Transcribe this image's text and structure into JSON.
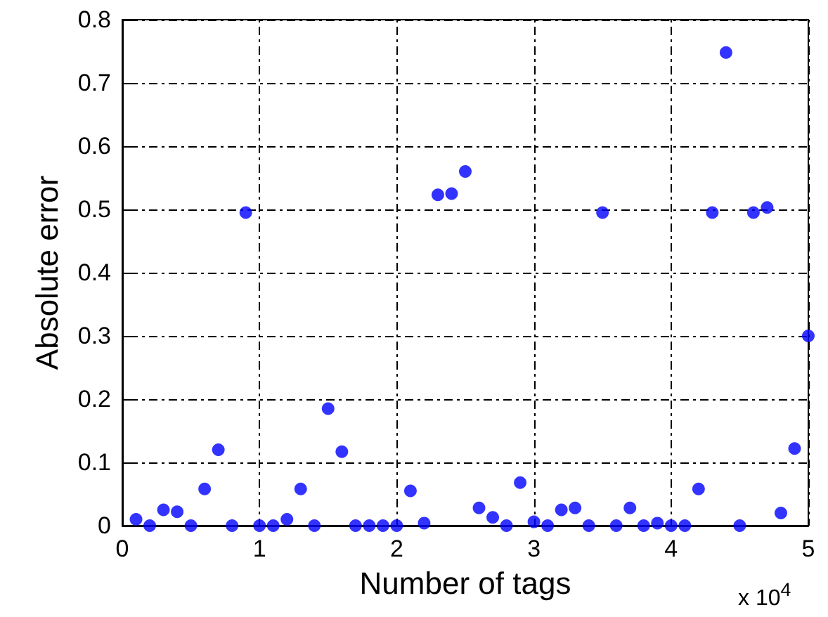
{
  "chart_data": {
    "type": "scatter",
    "xlabel": "Number of tags",
    "ylabel": "Absolute error",
    "annotations": [
      "x 10$^{4}$"
    ],
    "x": [
      0.1,
      0.2,
      0.3,
      0.4,
      0.5,
      0.6,
      0.7,
      0.8,
      0.9,
      1.0,
      1.1,
      1.2,
      1.3,
      1.4,
      1.5,
      1.6,
      1.7,
      1.8,
      1.9,
      2.0,
      2.1,
      2.2,
      2.3,
      2.4,
      2.5,
      2.6,
      2.7,
      2.8,
      2.9,
      3.0,
      3.1,
      3.2,
      3.3,
      3.4,
      3.5,
      3.6,
      3.7,
      3.8,
      3.9,
      4.0,
      4.1,
      4.2,
      4.3,
      4.4,
      4.5,
      4.6,
      4.7,
      4.8,
      4.9,
      5.0
    ],
    "series": [
      {
        "color": "#0000ff",
        "values": [
          0.01,
          0,
          0.025,
          0.022,
          0,
          0.058,
          0.12,
          0,
          0.495,
          0,
          0,
          0.01,
          0.058,
          0,
          0.185,
          0.117,
          0,
          0,
          0,
          0,
          0.055,
          0.004,
          0.523,
          0.525,
          0.56,
          0.028,
          0.013,
          0,
          0.068,
          0.006,
          0,
          0.025,
          0.028,
          0,
          0.495,
          0,
          0.028,
          0,
          0.004,
          0,
          0,
          0.058,
          0.495,
          0.748,
          0,
          0.495,
          0.503,
          0.02,
          0.122,
          0.3
        ]
      }
    ],
    "xlim": [
      0,
      5
    ],
    "xticks": [
      0,
      1,
      2,
      3,
      4,
      5
    ],
    "ylim": [
      0,
      0.8
    ],
    "yticks": [
      0,
      0.1,
      0.2,
      0.3,
      0.4,
      0.5,
      0.6,
      0.7,
      0.8
    ],
    "grid": true,
    "marker": "circle"
  }
}
